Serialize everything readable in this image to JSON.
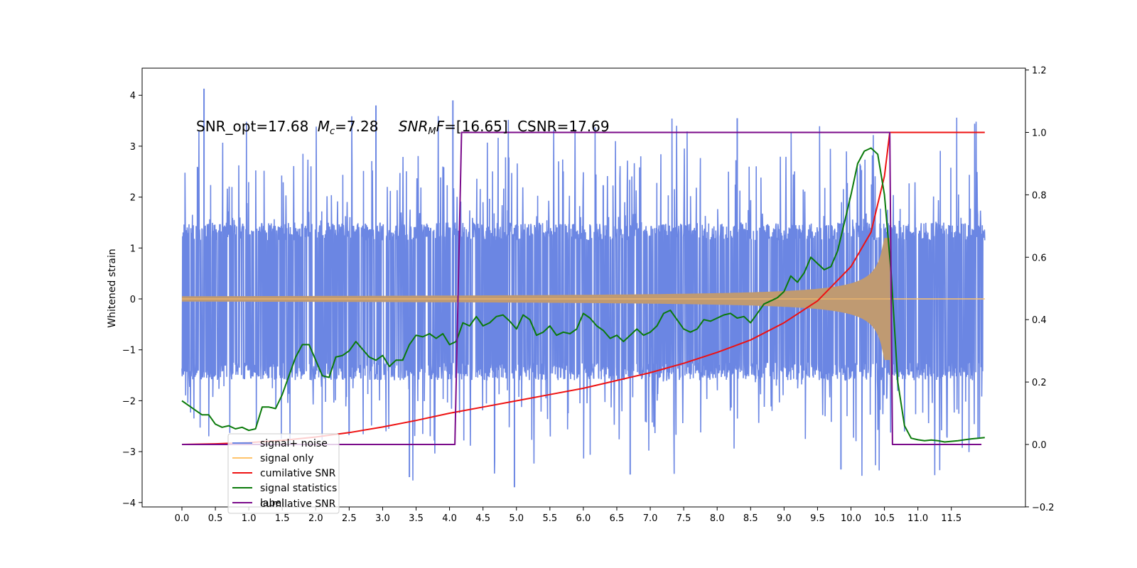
{
  "chart_data": {
    "type": "line",
    "ylabel": "Whitened strain",
    "xlim": [
      -0.6,
      12.6
    ],
    "ylim": [
      -4.2,
      4.5
    ],
    "ylim_right": [
      -0.2,
      1.2
    ],
    "x_ticks": [
      "0.0",
      "0.5",
      "1.0",
      "1.5",
      "2.0",
      "2.5",
      "3.0",
      "3.5",
      "4.0",
      "4.5",
      "5.0",
      "5.5",
      "6.0",
      "6.5",
      "7.0",
      "7.5",
      "8.0",
      "8.5",
      "9.0",
      "9.5",
      "10.0",
      "10.5",
      "11.0",
      "11.5"
    ],
    "y_ticks_left": [
      "4",
      "3",
      "2",
      "1",
      "0",
      "−1",
      "−2",
      "−3",
      "−4"
    ],
    "y_ticks_right": [
      "1.2",
      "1.0",
      "0.8",
      "0.6",
      "0.4",
      "0.2",
      "0.0",
      "−0.2"
    ],
    "annotation": {
      "snr_opt": "SNR_opt=17.68",
      "mc_symbol": "M",
      "mc_sub": "c",
      "mc_value": "=7.28",
      "mf_symbol": "SNR",
      "mf_sub": "M",
      "mf_after": "F",
      "mf_value": "=[16.65]",
      "csnr": "CSNR=17.69"
    },
    "legend": {
      "position": "lower-left",
      "ghost_text": "cumilative SNR",
      "entries": [
        {
          "label": "signal+ noise",
          "color": "#6b86e3"
        },
        {
          "label": "signal only",
          "color": "#ffc36b"
        },
        {
          "label": "cumilative SNR",
          "color": "#ee1111"
        },
        {
          "label": "signal statistics",
          "color": "#0a7a0a"
        },
        {
          "label": "label",
          "color": "#7a0a8a"
        }
      ]
    },
    "series": [
      {
        "name": "signal+ noise",
        "axis": "left",
        "color": "#6b86e3",
        "x_range": [
          0.0,
          12.0
        ],
        "noise_band": [
          -1.6,
          1.5
        ],
        "peak_max": 4.13,
        "peak_min": -3.7
      },
      {
        "name": "signal only",
        "axis": "left",
        "color": "#ffc36b",
        "x_range": [
          0.0,
          10.58
        ],
        "amplitude_start": 0.02,
        "amplitude_at_merger": 1.2,
        "merger_time": 10.58
      },
      {
        "name": "cumilative SNR",
        "axis": "right",
        "color": "#ee1111",
        "x": [
          0.0,
          0.5,
          1.0,
          1.5,
          2.0,
          2.5,
          3.0,
          3.5,
          4.0,
          4.5,
          5.0,
          5.5,
          6.0,
          6.5,
          7.0,
          7.5,
          8.0,
          8.5,
          9.0,
          9.5,
          10.0,
          10.3,
          10.5,
          10.58,
          12.0
        ],
        "values": [
          0.0,
          0.002,
          0.006,
          0.013,
          0.024,
          0.038,
          0.056,
          0.077,
          0.1,
          0.12,
          0.14,
          0.16,
          0.18,
          0.205,
          0.23,
          0.26,
          0.295,
          0.335,
          0.39,
          0.46,
          0.57,
          0.68,
          0.86,
          1.0,
          1.0
        ]
      },
      {
        "name": "signal statistics",
        "axis": "right",
        "color": "#0a7a0a",
        "x": [
          0.0,
          0.1,
          0.2,
          0.3,
          0.4,
          0.5,
          0.6,
          0.7,
          0.8,
          0.9,
          1.0,
          1.1,
          1.2,
          1.3,
          1.4,
          1.5,
          1.6,
          1.7,
          1.8,
          1.9,
          2.0,
          2.1,
          2.2,
          2.3,
          2.4,
          2.5,
          2.6,
          2.7,
          2.8,
          2.9,
          3.0,
          3.1,
          3.2,
          3.3,
          3.4,
          3.5,
          3.6,
          3.7,
          3.8,
          3.9,
          4.0,
          4.1,
          4.2,
          4.3,
          4.4,
          4.5,
          4.6,
          4.7,
          4.8,
          4.9,
          5.0,
          5.1,
          5.2,
          5.3,
          5.4,
          5.5,
          5.6,
          5.7,
          5.8,
          5.9,
          6.0,
          6.1,
          6.2,
          6.3,
          6.4,
          6.5,
          6.6,
          6.7,
          6.8,
          6.9,
          7.0,
          7.1,
          7.2,
          7.3,
          7.4,
          7.5,
          7.6,
          7.7,
          7.8,
          7.9,
          8.0,
          8.1,
          8.2,
          8.3,
          8.4,
          8.5,
          8.6,
          8.7,
          8.8,
          8.9,
          9.0,
          9.1,
          9.2,
          9.3,
          9.4,
          9.5,
          9.6,
          9.7,
          9.8,
          9.9,
          10.0,
          10.1,
          10.2,
          10.3,
          10.4,
          10.5,
          10.6,
          10.7,
          10.8,
          10.9,
          11.0,
          11.1,
          11.2,
          11.3,
          11.4,
          11.5,
          11.6,
          11.7,
          11.8,
          11.9,
          12.0
        ],
        "values": [
          0.14,
          0.125,
          0.11,
          0.095,
          0.095,
          0.065,
          0.055,
          0.06,
          0.05,
          0.055,
          0.045,
          0.05,
          0.12,
          0.12,
          0.115,
          0.16,
          0.22,
          0.28,
          0.32,
          0.32,
          0.27,
          0.22,
          0.215,
          0.28,
          0.285,
          0.3,
          0.33,
          0.305,
          0.28,
          0.27,
          0.285,
          0.25,
          0.27,
          0.27,
          0.32,
          0.35,
          0.345,
          0.355,
          0.34,
          0.355,
          0.32,
          0.33,
          0.39,
          0.38,
          0.41,
          0.38,
          0.39,
          0.41,
          0.415,
          0.395,
          0.37,
          0.415,
          0.4,
          0.35,
          0.36,
          0.38,
          0.35,
          0.36,
          0.355,
          0.37,
          0.42,
          0.405,
          0.38,
          0.365,
          0.34,
          0.35,
          0.33,
          0.35,
          0.37,
          0.35,
          0.36,
          0.38,
          0.42,
          0.43,
          0.4,
          0.37,
          0.36,
          0.37,
          0.4,
          0.395,
          0.405,
          0.415,
          0.42,
          0.405,
          0.41,
          0.39,
          0.42,
          0.45,
          0.46,
          0.47,
          0.49,
          0.54,
          0.52,
          0.55,
          0.6,
          0.58,
          0.56,
          0.57,
          0.62,
          0.71,
          0.8,
          0.9,
          0.94,
          0.95,
          0.93,
          0.8,
          0.55,
          0.2,
          0.06,
          0.02,
          0.015,
          0.012,
          0.014,
          0.012,
          0.008,
          0.01,
          0.012,
          0.015,
          0.018,
          0.02,
          0.022
        ]
      },
      {
        "name": "label",
        "axis": "right",
        "color": "#7a0a8a",
        "x": [
          0.0,
          4.08,
          4.18,
          10.55,
          10.58,
          10.62,
          11.95
        ],
        "values": [
          0.0,
          0.0,
          1.0,
          1.0,
          1.0,
          0.0,
          0.0
        ]
      }
    ]
  }
}
